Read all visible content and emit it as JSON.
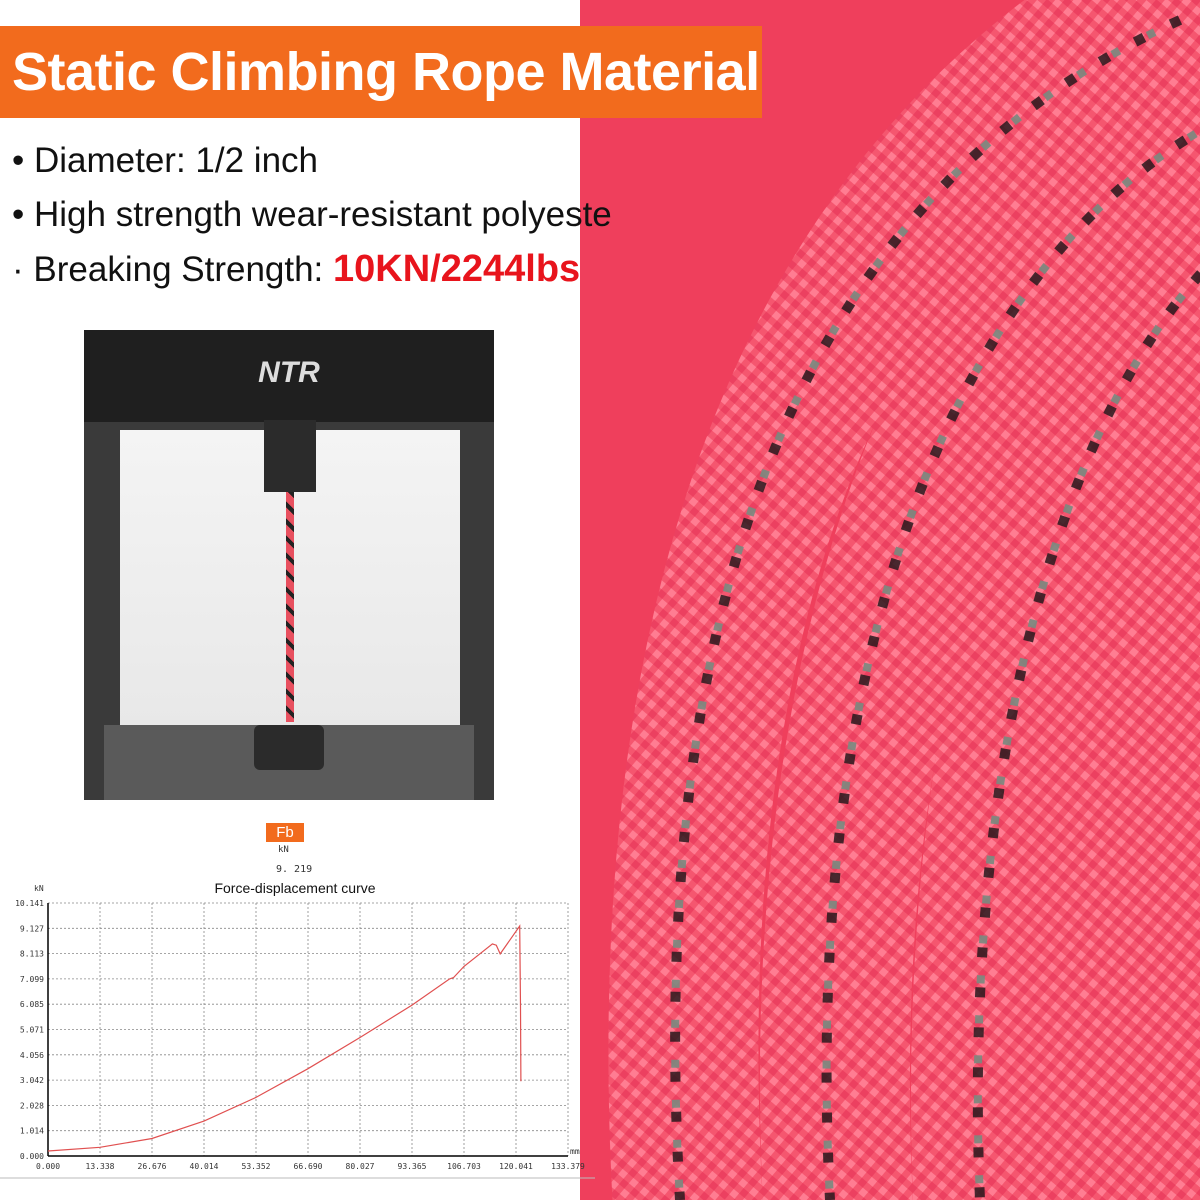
{
  "banner": {
    "title": "Static Climbing Rope Material"
  },
  "bullets": [
    {
      "text": "Diameter: 1/2 inch"
    },
    {
      "text": "High strength wear-resistant polyeste"
    },
    {
      "label": "Breaking Strength: ",
      "value": "10KN/2244lbs"
    }
  ],
  "machine": {
    "brand": "NTR"
  },
  "readout": {
    "badge": "Fb",
    "unit": "kN",
    "value": "9. 219"
  },
  "colors": {
    "accent": "#f26b1d",
    "highlight": "#e8141c",
    "rope": "#f5566f",
    "curve": "#e05050"
  },
  "chart_data": {
    "type": "line",
    "title": "Force-displacement curve",
    "ylabel": "kN",
    "xlabel": "mm",
    "xlim": [
      0,
      133.379
    ],
    "ylim": [
      0,
      10.141
    ],
    "grid": true,
    "xticks": [
      "0.000",
      "13.338",
      "26.676",
      "40.014",
      "53.352",
      "66.690",
      "80.027",
      "93.365",
      "106.703",
      "120.041",
      "133.379"
    ],
    "yticks": [
      "0.000",
      "1.014",
      "2.028",
      "3.042",
      "4.056",
      "5.071",
      "6.085",
      "7.099",
      "8.113",
      "9.127",
      "10.141"
    ],
    "series": [
      {
        "x": [
          0,
          13.338,
          26.676,
          40.014,
          53.352,
          66.69,
          80.027,
          93.365,
          103,
          104,
          106.703,
          114,
          115,
          116,
          121,
          121.2,
          121.3
        ],
        "y": [
          0.2,
          0.35,
          0.7,
          1.4,
          2.35,
          3.5,
          4.75,
          6.05,
          7.1,
          7.15,
          7.6,
          8.5,
          8.45,
          8.1,
          9.22,
          6.0,
          3.0
        ]
      }
    ]
  }
}
